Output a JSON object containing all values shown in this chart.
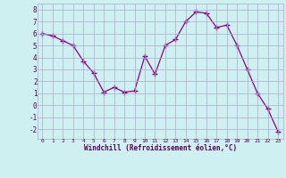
{
  "x": [
    0,
    1,
    2,
    3,
    4,
    5,
    6,
    7,
    8,
    9,
    10,
    11,
    12,
    13,
    14,
    15,
    16,
    17,
    18,
    19,
    20,
    21,
    22,
    23
  ],
  "y": [
    6.0,
    5.8,
    5.4,
    5.0,
    3.7,
    2.7,
    1.1,
    1.5,
    1.1,
    1.2,
    4.1,
    2.6,
    5.0,
    5.5,
    7.0,
    7.8,
    7.7,
    6.5,
    6.7,
    5.0,
    3.0,
    1.0,
    -0.3,
    -2.2
  ],
  "line_color": "#880088",
  "marker": "P",
  "marker_size": 2.5,
  "bg_color": "#cff0f0",
  "grid_color": "#aaaacc",
  "xlabel": "Windchill (Refroidissement éolien,°C)",
  "xlabel_color": "#550055",
  "tick_color": "#550055",
  "ylim": [
    -2.8,
    8.5
  ],
  "xlim": [
    -0.5,
    23.5
  ],
  "yticks": [
    -2,
    -1,
    0,
    1,
    2,
    3,
    4,
    5,
    6,
    7,
    8
  ],
  "xticks": [
    0,
    1,
    2,
    3,
    4,
    5,
    6,
    7,
    8,
    9,
    10,
    11,
    12,
    13,
    14,
    15,
    16,
    17,
    18,
    19,
    20,
    21,
    22,
    23
  ]
}
